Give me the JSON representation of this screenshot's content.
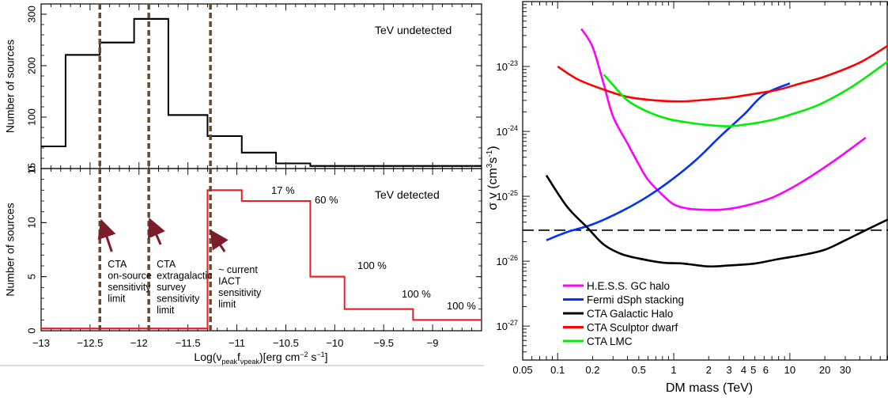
{
  "chart_data": [
    {
      "type": "histogram",
      "panel": "top",
      "ylabel": "Number of sources",
      "annotation": "TeV undetected",
      "xlim": [
        -13,
        -8.5
      ],
      "ylim": [
        0,
        320
      ],
      "yticks": [
        "0",
        "100",
        "200",
        "300"
      ],
      "color": "#000000",
      "bin_edges": [
        -13,
        -12.75,
        -12.4,
        -12.05,
        -11.95,
        -11.7,
        -11.3,
        -10.95,
        -10.6,
        -10.25,
        -9.9,
        -9.55,
        -9.2,
        -8.85,
        -8.5
      ],
      "counts": [
        43,
        221,
        245,
        291,
        291,
        104,
        63,
        31,
        10,
        5,
        5,
        5,
        5,
        5
      ],
      "vlines": [
        -12.4,
        -11.9,
        -11.27
      ]
    },
    {
      "type": "histogram",
      "panel": "bottom",
      "ylabel": "Number of sources",
      "annotation": "TeV detected",
      "xlabel_parts": [
        "Log(ν",
        "peak",
        "f",
        "νpeak",
        ")[erg cm",
        "−2",
        " s",
        "−1",
        "]"
      ],
      "xlim": [
        -13,
        -8.5
      ],
      "ylim": [
        0,
        15
      ],
      "xticks": [
        "−13",
        "−12.5",
        "−12",
        "−11.5",
        "−11",
        "−10.5",
        "−10",
        "−9.5",
        "−9"
      ],
      "yticks": [
        "0",
        "5",
        "10",
        "15"
      ],
      "color": "#e8202a",
      "bin_edges": [
        -13,
        -11.3,
        -10.95,
        -10.6,
        -10.25,
        -9.9,
        -9.55,
        -9.2,
        -8.85,
        -8.5
      ],
      "counts": [
        0.2,
        13,
        12,
        12,
        5,
        2,
        2,
        1,
        1
      ],
      "percent_labels": [
        "17 %",
        "60 %",
        "100 %",
        "100 %",
        "100 %"
      ],
      "vlines": [
        -12.4,
        -11.9,
        -11.27
      ],
      "limit_labels": [
        [
          "CTA",
          "on-source",
          "sensitivity",
          "limit"
        ],
        [
          "CTA",
          "extragalactic",
          "survey",
          "sensitivity",
          "limit"
        ],
        [
          "~ current",
          "IACT",
          "sensitivity",
          "limit"
        ]
      ]
    },
    {
      "type": "line",
      "panel": "right",
      "xlabel": "DM mass (TeV)",
      "ylabel_parts": [
        "σ v (cm",
        "3",
        "s",
        "-1",
        ")"
      ],
      "xscale": "log",
      "yscale": "log",
      "xlim": [
        0.05,
        70
      ],
      "ylim": [
        3e-28,
        1e-22
      ],
      "xticks": [
        "0.05",
        "0.1",
        "0.2",
        "0.5",
        "1",
        "2",
        "3",
        "4",
        "5",
        "6",
        "10",
        "20",
        "30"
      ],
      "yticks": [
        "10^-27",
        "10^-26",
        "10^-25",
        "10^-24",
        "10^-23"
      ],
      "hline": 3e-26,
      "legend_position": "bottom-left",
      "series": [
        {
          "name": "H.E.S.S. GC halo",
          "color": "#ff00ff",
          "x": [
            0.16,
            0.2,
            0.25,
            0.3,
            0.4,
            0.5,
            0.6,
            0.8,
            1.0,
            1.3,
            1.8,
            2.5,
            3.5,
            5,
            7,
            10,
            15,
            25,
            45
          ],
          "y": [
            3.8e-23,
            2e-23,
            5.3e-24,
            1.7e-24,
            6.5e-25,
            3.1e-25,
            1.8e-25,
            1.05e-25,
            7.5e-26,
            6.5e-26,
            6.2e-26,
            6.2e-26,
            6.7e-26,
            7.8e-26,
            9.5e-26,
            1.3e-25,
            2e-25,
            3.7e-25,
            8e-25
          ]
        },
        {
          "name": "Fermi dSph stacking",
          "color": "#0033ff",
          "x": [
            0.08,
            0.12,
            0.2,
            0.35,
            0.6,
            1.0,
            1.6,
            2.5,
            4,
            6,
            10
          ],
          "y": [
            2.1e-26,
            2.8e-26,
            3.7e-26,
            5.8e-26,
            1e-25,
            1.9e-25,
            3.8e-25,
            8.3e-25,
            1.8e-24,
            3.7e-24,
            5.5e-24
          ]
        },
        {
          "name": "CTA Galactic Halo",
          "color": "#000000",
          "x": [
            0.08,
            0.12,
            0.18,
            0.25,
            0.35,
            0.5,
            0.8,
            1.2,
            2.0,
            3.0,
            5.0,
            8.0,
            13,
            20,
            30,
            45,
            70
          ],
          "y": [
            2.1e-25,
            7e-26,
            3.3e-26,
            1.8e-26,
            1.3e-26,
            1.1e-26,
            9.5e-27,
            9.2e-27,
            8.3e-27,
            8.6e-27,
            9.2e-27,
            1.08e-26,
            1.25e-26,
            1.5e-26,
            2.1e-26,
            3e-26,
            4.4e-26
          ]
        },
        {
          "name": "CTA Sculptor dwarf",
          "color": "#ff0000",
          "x": [
            0.1,
            0.15,
            0.25,
            0.4,
            0.7,
            1.2,
            2.0,
            3.0,
            5.0,
            8.0,
            12,
            20,
            40,
            70
          ],
          "y": [
            1e-23,
            6.3e-24,
            4.4e-24,
            3.4e-24,
            3e-24,
            2.9e-24,
            3.1e-24,
            3.3e-24,
            3.8e-24,
            4.4e-24,
            5.4e-24,
            7e-24,
            1.15e-23,
            2.1e-23
          ]
        },
        {
          "name": "CTA LMC",
          "color": "#00ee00",
          "x": [
            0.25,
            0.3,
            0.4,
            0.6,
            0.9,
            1.4,
            2.0,
            3.0,
            4.5,
            7.0,
            10,
            18,
            35,
            70
          ],
          "y": [
            7.5e-24,
            5.2e-24,
            3e-24,
            2e-24,
            1.55e-24,
            1.35e-24,
            1.25e-24,
            1.2e-24,
            1.3e-24,
            1.5e-24,
            1.8e-24,
            2.6e-24,
            5e-24,
            1.2e-23
          ]
        }
      ]
    }
  ]
}
